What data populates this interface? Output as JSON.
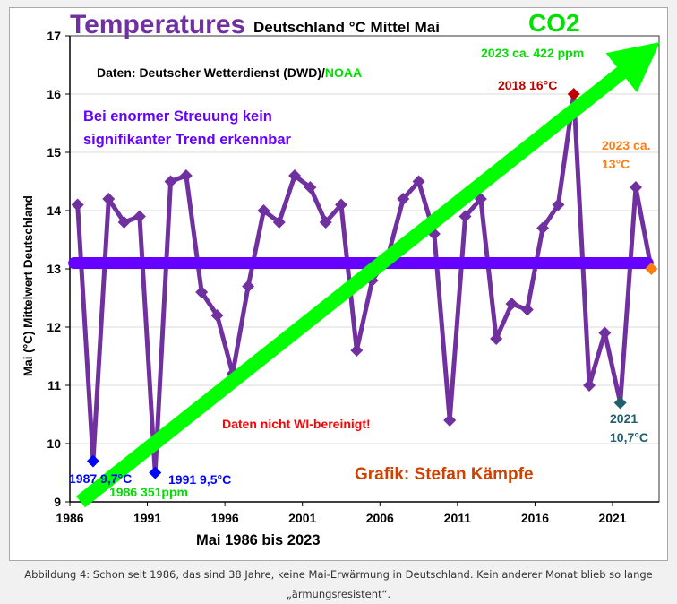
{
  "chart_data": {
    "type": "line",
    "title_main": "Temperatures",
    "title_sub": "Deutschland °C Mittel Mai",
    "co2_label": "CO2",
    "xlabel": "Mai 1986 bis 2023",
    "ylabel": "Mai (°C) Mittelwert Deutschland",
    "ylim": [
      9,
      17
    ],
    "xlim": [
      1986,
      2024
    ],
    "yticks": [
      "9",
      "10",
      "11",
      "12",
      "13",
      "14",
      "15",
      "16",
      "17"
    ],
    "xticks": [
      "1986",
      "1991",
      "1996",
      "2001",
      "2006",
      "2011",
      "2016",
      "2021"
    ],
    "grid": true,
    "series": [
      {
        "name": "Mai Mittelwert Deutschland",
        "color": "#7030a0",
        "x": [
          1986,
          1987,
          1988,
          1989,
          1990,
          1991,
          1992,
          1993,
          1994,
          1995,
          1996,
          1997,
          1998,
          1999,
          2000,
          2001,
          2002,
          2003,
          2004,
          2005,
          2006,
          2007,
          2008,
          2009,
          2010,
          2011,
          2012,
          2013,
          2014,
          2015,
          2016,
          2017,
          2018,
          2019,
          2020,
          2021,
          2022,
          2023
        ],
        "values": [
          14.1,
          9.7,
          14.2,
          13.8,
          13.9,
          9.5,
          14.5,
          14.6,
          12.6,
          12.2,
          11.2,
          12.7,
          14.0,
          13.8,
          14.6,
          14.4,
          13.8,
          14.1,
          11.6,
          12.8,
          13.2,
          14.2,
          14.5,
          13.6,
          10.4,
          13.9,
          14.2,
          11.8,
          12.4,
          12.3,
          13.7,
          14.1,
          16.0,
          11.0,
          11.9,
          10.7,
          14.4,
          13.0
        ]
      },
      {
        "name": "Trend",
        "color": "#6600ff",
        "x": [
          1986,
          2023
        ],
        "values": [
          13.1,
          13.1
        ]
      }
    ],
    "highlights": [
      {
        "x": 1987,
        "value": 9.7,
        "color": "#0000ff",
        "label": "1987 9,7°C"
      },
      {
        "x": 1991,
        "value": 9.5,
        "color": "#0000ff",
        "label": "1991 9,5°C"
      },
      {
        "x": 2018,
        "value": 16.0,
        "color": "#c00000",
        "label": "2018 16°C"
      },
      {
        "x": 2021,
        "value": 10.7,
        "color": "#215f6e",
        "label_line1": "2021",
        "label_line2": "10,7°C"
      },
      {
        "x": 2023,
        "value": 13.0,
        "color": "#ff7c10",
        "label_line1": "2023 ca.",
        "label_line2": "13°C"
      }
    ],
    "co2_arrow": {
      "color": "#00ff00",
      "start_label": "1986 351ppm",
      "end_label": "2023 ca. 422 ppm"
    },
    "annotations": {
      "source_prefix": "Daten: Deutscher Wetterdienst (DWD)/",
      "source_noaa": "NOAA",
      "trend_line1": "Bei enormer Streuung kein",
      "trend_line2": "signifikanter Trend erkennbar",
      "not_adjusted": "Daten nicht WI-bereinigt!",
      "credit": "Grafik: Stefan Kämpfe"
    }
  },
  "caption": {
    "line1": "Abbildung 4: Schon seit 1986, das sind 38 Jahre, keine Mai-Erwärmung in Deutschland. Kein anderer Monat blieb so lange",
    "line2": "„ärmungsresistent“."
  }
}
